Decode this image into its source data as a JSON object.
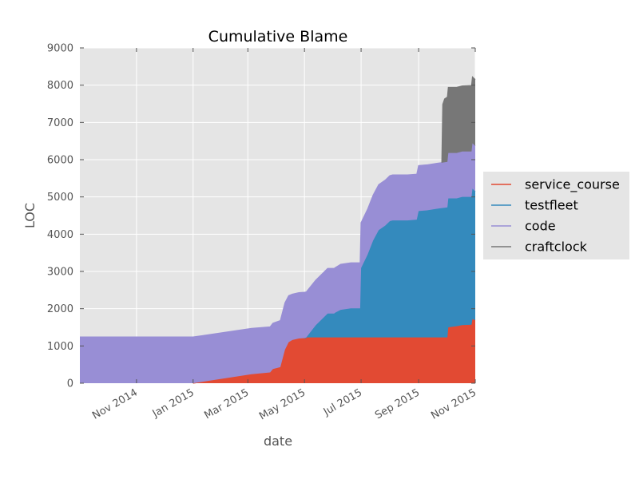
{
  "chart_data": {
    "type": "area",
    "stacked": true,
    "title": "Cumulative Blame",
    "xlabel": "date",
    "ylabel": "LOC",
    "xlim": [
      "2014-09-01",
      "2015-11-01"
    ],
    "ylim": [
      0,
      9000
    ],
    "yticks": [
      0,
      1000,
      2000,
      3000,
      4000,
      5000,
      6000,
      7000,
      8000,
      9000
    ],
    "xticks": [
      {
        "date": "2014-11-01",
        "label": "Nov 2014"
      },
      {
        "date": "2015-01-01",
        "label": "Jan 2015"
      },
      {
        "date": "2015-03-01",
        "label": "Mar 2015"
      },
      {
        "date": "2015-05-01",
        "label": "May 2015"
      },
      {
        "date": "2015-07-01",
        "label": "Jul 2015"
      },
      {
        "date": "2015-09-01",
        "label": "Sep 2015"
      },
      {
        "date": "2015-11-01",
        "label": "Nov 2015"
      }
    ],
    "grid": true,
    "legend_position": "right, outside plot",
    "plot_background": "#e5e5e5",
    "series": [
      {
        "name": "service_course",
        "color": "#e24a33",
        "points": [
          [
            "2015-01-01",
            0
          ],
          [
            "2015-03-05",
            240
          ],
          [
            "2015-03-25",
            290
          ],
          [
            "2015-03-28",
            380
          ],
          [
            "2015-04-05",
            430
          ],
          [
            "2015-04-10",
            900
          ],
          [
            "2015-04-14",
            1100
          ],
          [
            "2015-04-18",
            1160
          ],
          [
            "2015-04-25",
            1200
          ],
          [
            "2015-05-01",
            1210
          ],
          [
            "2015-05-03",
            1230
          ],
          [
            "2015-10-02",
            1230
          ],
          [
            "2015-10-03",
            1500
          ],
          [
            "2015-10-12",
            1530
          ],
          [
            "2015-10-18",
            1560
          ],
          [
            "2015-10-28",
            1570
          ],
          [
            "2015-10-29",
            1720
          ],
          [
            "2015-11-01",
            1690
          ]
        ]
      },
      {
        "name": "testfleet",
        "color": "#348abd",
        "points": [
          [
            "2015-05-01",
            0
          ],
          [
            "2015-05-03",
            0
          ],
          [
            "2015-05-13",
            320
          ],
          [
            "2015-05-26",
            640
          ],
          [
            "2015-06-02",
            640
          ],
          [
            "2015-06-03",
            660
          ],
          [
            "2015-06-09",
            740
          ],
          [
            "2015-06-20",
            780
          ],
          [
            "2015-06-30",
            780
          ],
          [
            "2015-07-01",
            1860
          ],
          [
            "2015-07-08",
            2220
          ],
          [
            "2015-07-14",
            2600
          ],
          [
            "2015-07-20",
            2880
          ],
          [
            "2015-07-27",
            3000
          ],
          [
            "2015-08-01",
            3120
          ],
          [
            "2015-08-04",
            3140
          ],
          [
            "2015-08-10",
            3140
          ],
          [
            "2015-08-20",
            3140
          ],
          [
            "2015-08-30",
            3160
          ],
          [
            "2015-09-01",
            3390
          ],
          [
            "2015-09-10",
            3410
          ],
          [
            "2015-09-20",
            3450
          ],
          [
            "2015-09-26",
            3470
          ],
          [
            "2015-10-02",
            3490
          ],
          [
            "2015-10-03",
            3460
          ],
          [
            "2015-10-12",
            3430
          ],
          [
            "2015-10-18",
            3440
          ],
          [
            "2015-10-28",
            3430
          ],
          [
            "2015-10-29",
            3500
          ],
          [
            "2015-11-01",
            3460
          ]
        ]
      },
      {
        "name": "code",
        "color": "#988ed5",
        "points": [
          [
            "2014-09-01",
            1240
          ],
          [
            "2014-12-31",
            1240
          ],
          [
            "2015-01-01",
            1240
          ],
          [
            "2015-03-05",
            1230
          ],
          [
            "2015-03-25",
            1220
          ],
          [
            "2015-03-28",
            1230
          ],
          [
            "2015-04-05",
            1250
          ],
          [
            "2015-04-10",
            1260
          ],
          [
            "2015-04-14",
            1250
          ],
          [
            "2015-04-18",
            1230
          ],
          [
            "2015-04-25",
            1230
          ],
          [
            "2015-05-01",
            1230
          ],
          [
            "2015-05-03",
            1220
          ],
          [
            "2015-05-13",
            1210
          ],
          [
            "2015-05-26",
            1210
          ],
          [
            "2015-06-02",
            1210
          ],
          [
            "2015-06-03",
            1210
          ],
          [
            "2015-06-09",
            1220
          ],
          [
            "2015-06-20",
            1220
          ],
          [
            "2015-06-30",
            1220
          ],
          [
            "2015-07-01",
            1220
          ],
          [
            "2015-07-08",
            1220
          ],
          [
            "2015-07-14",
            1220
          ],
          [
            "2015-07-20",
            1220
          ],
          [
            "2015-07-27",
            1220
          ],
          [
            "2015-08-01",
            1220
          ],
          [
            "2015-08-04",
            1220
          ],
          [
            "2015-08-10",
            1220
          ],
          [
            "2015-08-20",
            1220
          ],
          [
            "2015-08-30",
            1220
          ],
          [
            "2015-09-01",
            1220
          ],
          [
            "2015-09-10",
            1220
          ],
          [
            "2015-09-20",
            1220
          ],
          [
            "2015-09-26",
            1220
          ],
          [
            "2015-10-02",
            1220
          ],
          [
            "2015-10-03",
            1220
          ],
          [
            "2015-10-12",
            1220
          ],
          [
            "2015-10-18",
            1220
          ],
          [
            "2015-10-28",
            1220
          ],
          [
            "2015-10-29",
            1220
          ],
          [
            "2015-11-01",
            1220
          ]
        ]
      },
      {
        "name": "craftclock",
        "color": "#777777",
        "points": [
          [
            "2015-09-26",
            0
          ],
          [
            "2015-09-27",
            1560
          ],
          [
            "2015-09-29",
            1700
          ],
          [
            "2015-10-02",
            1740
          ],
          [
            "2015-10-03",
            1760
          ],
          [
            "2015-10-12",
            1760
          ],
          [
            "2015-10-18",
            1760
          ],
          [
            "2015-10-28",
            1770
          ],
          [
            "2015-10-29",
            1780
          ],
          [
            "2015-11-01",
            1780
          ]
        ]
      }
    ]
  }
}
